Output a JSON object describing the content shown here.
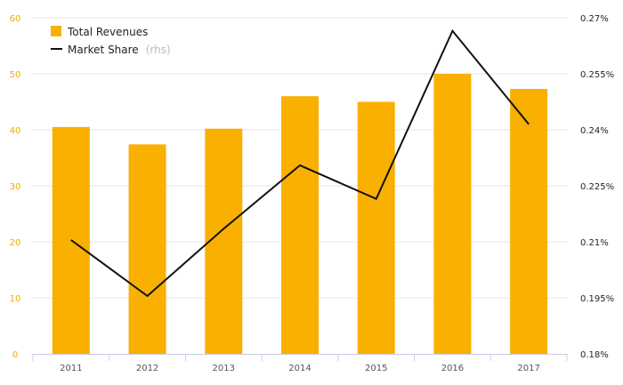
{
  "chart_data": {
    "type": "bar",
    "categories": [
      "2011",
      "2012",
      "2013",
      "2014",
      "2015",
      "2016",
      "2017"
    ],
    "series": [
      {
        "name": "Total Revenues",
        "type": "bar",
        "axis": "left",
        "color": "#f9b000",
        "values": [
          40.5,
          37.4,
          40.2,
          46.0,
          45.0,
          50.0,
          47.3
        ]
      },
      {
        "name": "Market Share",
        "name_suffix": "(rhs)",
        "type": "line",
        "axis": "right",
        "color": "#111111",
        "values": [
          0.2105,
          0.1955,
          0.2135,
          0.2305,
          0.2215,
          0.2665,
          0.2415
        ]
      }
    ],
    "y_left": {
      "min": 0,
      "max": 60,
      "ticks": [
        "0",
        "10",
        "20",
        "30",
        "40",
        "50",
        "60"
      ],
      "tick_color": "#f0ab00"
    },
    "y_right": {
      "min": 0.18,
      "max": 0.27,
      "ticks": [
        "0.18%",
        "0.195%",
        "0.21%",
        "0.225%",
        "0.24%",
        "0.255%",
        "0.27%"
      ]
    },
    "grid": true,
    "legend_position": "top-left"
  }
}
